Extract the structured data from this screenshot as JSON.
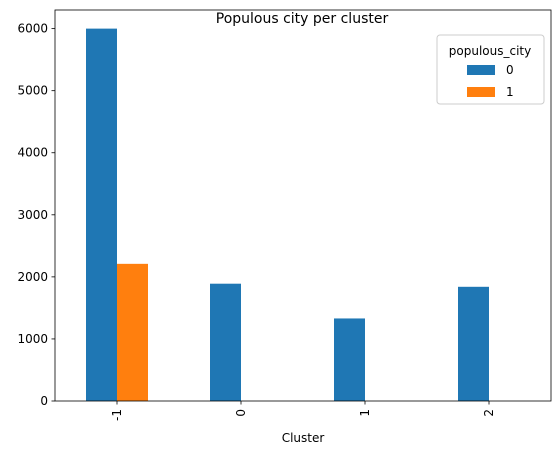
{
  "chart_data": {
    "type": "bar",
    "title": "Populous city per cluster",
    "xlabel": "Cluster",
    "ylabel": "",
    "categories": [
      "-1",
      "0",
      "1",
      "2"
    ],
    "series": [
      {
        "name": "0",
        "color": "#1f77b4",
        "values": [
          6000,
          1890,
          1330,
          1840
        ]
      },
      {
        "name": "1",
        "color": "#ff7f0e",
        "values": [
          2210,
          0,
          0,
          0
        ]
      }
    ],
    "ylim": [
      0,
      6300
    ],
    "yticks": [
      0,
      1000,
      2000,
      3000,
      4000,
      5000,
      6000
    ],
    "legend": {
      "title": "populous_city",
      "position": "top-right"
    },
    "grid": false
  }
}
